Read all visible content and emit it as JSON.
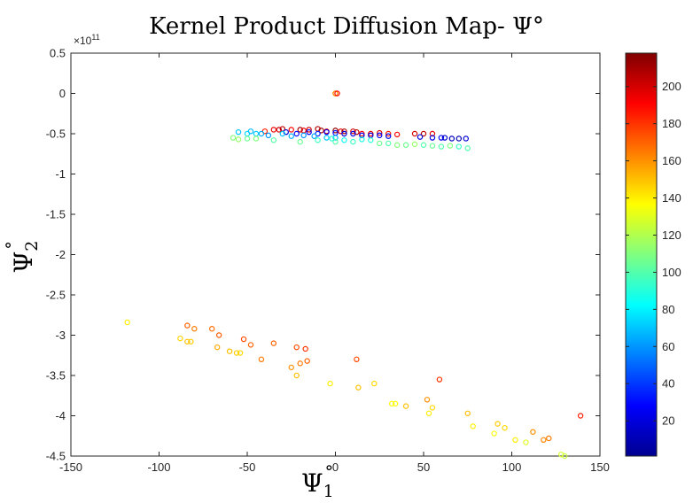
{
  "chart_data": {
    "type": "scatter",
    "title": "Kernel Product Diffusion Map- Ψ°",
    "xlabel": "Ψ",
    "xlabel_sub": "1",
    "xlabel_sup": "°",
    "ylabel": "Ψ",
    "ylabel_sub": "2",
    "ylabel_sup": "°",
    "y_exponent_prefix": "×10",
    "y_exponent_power": "11",
    "xlim": [
      -150,
      150
    ],
    "ylim": [
      -4.5,
      0.5
    ],
    "xticks": [
      -150,
      -100,
      -50,
      0,
      50,
      100,
      150
    ],
    "xtick_labels": [
      "-150",
      "-100",
      "-50",
      "0",
      "50",
      "100",
      "150"
    ],
    "yticks": [
      0.5,
      0,
      -0.5,
      -1,
      -1.5,
      -2,
      -2.5,
      -3,
      -3.5,
      -4,
      -4.5
    ],
    "ytick_labels": [
      "0.5",
      "0",
      "-0.5",
      "-1",
      "-1.5",
      "-2",
      "-2.5",
      "-3",
      "-3.5",
      "-4",
      "-4.5"
    ],
    "grid": false,
    "colorbar": {
      "range": [
        1,
        218
      ],
      "ticks": [
        20,
        40,
        60,
        80,
        100,
        120,
        140,
        160,
        180,
        200
      ],
      "tick_labels": [
        "20",
        "40",
        "60",
        "80",
        "100",
        "120",
        "140",
        "160",
        "180",
        "200"
      ],
      "colormap": "jet"
    },
    "points": [
      [
        0,
        0,
        200
      ],
      [
        0,
        0,
        150
      ],
      [
        0,
        0,
        160
      ],
      [
        1,
        0,
        190
      ],
      [
        -55,
        -0.48,
        70
      ],
      [
        -50,
        -0.5,
        75
      ],
      [
        -45,
        -0.5,
        72
      ],
      [
        -48,
        -0.47,
        68
      ],
      [
        -40,
        -0.47,
        185
      ],
      [
        -35,
        -0.45,
        195
      ],
      [
        -32,
        -0.45,
        200
      ],
      [
        -30,
        -0.44,
        205
      ],
      [
        -25,
        -0.45,
        190
      ],
      [
        -20,
        -0.45,
        210
      ],
      [
        -18,
        -0.46,
        195
      ],
      [
        -15,
        -0.45,
        200
      ],
      [
        -10,
        -0.44,
        205
      ],
      [
        -8,
        -0.46,
        210
      ],
      [
        -5,
        -0.47,
        200
      ],
      [
        0,
        -0.46,
        215
      ],
      [
        3,
        -0.47,
        195
      ],
      [
        5,
        -0.47,
        210
      ],
      [
        10,
        -0.47,
        200
      ],
      [
        12,
        -0.48,
        205
      ],
      [
        15,
        -0.5,
        190
      ],
      [
        20,
        -0.5,
        195
      ],
      [
        25,
        -0.49,
        200
      ],
      [
        30,
        -0.5,
        185
      ],
      [
        35,
        -0.51,
        190
      ],
      [
        45,
        -0.5,
        200
      ],
      [
        50,
        -0.5,
        205
      ],
      [
        55,
        -0.5,
        195
      ],
      [
        -28,
        -0.48,
        20
      ],
      [
        -22,
        -0.5,
        30
      ],
      [
        -15,
        -0.48,
        25
      ],
      [
        -10,
        -0.5,
        35
      ],
      [
        -5,
        -0.48,
        28
      ],
      [
        0,
        -0.49,
        30
      ],
      [
        5,
        -0.5,
        20
      ],
      [
        10,
        -0.5,
        25
      ],
      [
        15,
        -0.52,
        30
      ],
      [
        20,
        -0.52,
        22
      ],
      [
        25,
        -0.52,
        28
      ],
      [
        30,
        -0.53,
        25
      ],
      [
        48,
        -0.54,
        20
      ],
      [
        55,
        -0.55,
        22
      ],
      [
        60,
        -0.55,
        25
      ],
      [
        62,
        -0.55,
        18
      ],
      [
        66,
        -0.56,
        15
      ],
      [
        70,
        -0.56,
        12
      ],
      [
        74,
        -0.56,
        20
      ],
      [
        -42,
        -0.5,
        65
      ],
      [
        -38,
        -0.52,
        60
      ],
      [
        -30,
        -0.5,
        70
      ],
      [
        -25,
        -0.53,
        65
      ],
      [
        -18,
        -0.52,
        60
      ],
      [
        -12,
        -0.53,
        62
      ],
      [
        -5,
        -0.55,
        70
      ],
      [
        0,
        -0.55,
        68
      ],
      [
        -58,
        -0.55,
        110
      ],
      [
        -55,
        -0.57,
        115
      ],
      [
        -50,
        -0.56,
        105
      ],
      [
        -45,
        -0.56,
        110
      ],
      [
        -35,
        -0.58,
        100
      ],
      [
        -20,
        -0.6,
        105
      ],
      [
        -10,
        -0.58,
        95
      ],
      [
        0,
        -0.6,
        100
      ],
      [
        10,
        -0.6,
        95
      ],
      [
        20,
        -0.58,
        90
      ],
      [
        25,
        -0.62,
        105
      ],
      [
        30,
        -0.62,
        100
      ],
      [
        35,
        -0.64,
        110
      ],
      [
        40,
        -0.64,
        105
      ],
      [
        45,
        -0.63,
        115
      ],
      [
        50,
        -0.64,
        100
      ],
      [
        55,
        -0.65,
        105
      ],
      [
        60,
        -0.66,
        100
      ],
      [
        65,
        -0.65,
        110
      ],
      [
        70,
        -0.66,
        95
      ],
      [
        75,
        -0.68,
        100
      ],
      [
        5,
        -0.58,
        85
      ],
      [
        15,
        -0.57,
        88
      ],
      [
        -2,
        -0.56,
        92
      ],
      [
        -118,
        -2.84,
        140
      ],
      [
        -88,
        -3.04,
        145
      ],
      [
        -84,
        -2.88,
        170
      ],
      [
        -80,
        -2.92,
        165
      ],
      [
        -84,
        -3.08,
        150
      ],
      [
        -82,
        -3.08,
        148
      ],
      [
        -70,
        -2.92,
        168
      ],
      [
        -66,
        -3.0,
        172
      ],
      [
        -67,
        -3.15,
        155
      ],
      [
        -60,
        -3.2,
        150
      ],
      [
        -56,
        -3.22,
        148
      ],
      [
        -54,
        -3.22,
        145
      ],
      [
        -52,
        -3.05,
        175
      ],
      [
        -48,
        -3.12,
        170
      ],
      [
        -42,
        -3.3,
        165
      ],
      [
        -35,
        -3.1,
        170
      ],
      [
        -22,
        -3.15,
        175
      ],
      [
        -20,
        -3.35,
        165
      ],
      [
        -25,
        -3.4,
        160
      ],
      [
        -22,
        -3.5,
        150
      ],
      [
        -17,
        -3.17,
        180
      ],
      [
        -16,
        -3.32,
        170
      ],
      [
        -3,
        -3.6,
        140
      ],
      [
        12,
        -3.3,
        175
      ],
      [
        13,
        -3.65,
        150
      ],
      [
        22,
        -3.6,
        145
      ],
      [
        32,
        -3.85,
        135
      ],
      [
        34,
        -3.85,
        138
      ],
      [
        40,
        -3.88,
        150
      ],
      [
        52,
        -3.8,
        160
      ],
      [
        53,
        -3.97,
        140
      ],
      [
        55,
        -3.9,
        145
      ],
      [
        59,
        -3.55,
        180
      ],
      [
        75,
        -3.97,
        150
      ],
      [
        78,
        -4.13,
        140
      ],
      [
        90,
        -4.22,
        135
      ],
      [
        92,
        -4.1,
        148
      ],
      [
        96,
        -4.15,
        145
      ],
      [
        102,
        -4.3,
        140
      ],
      [
        108,
        -4.33,
        130
      ],
      [
        112,
        -4.2,
        160
      ],
      [
        118,
        -4.3,
        162
      ],
      [
        121,
        -4.28,
        165
      ],
      [
        128,
        -4.48,
        128
      ],
      [
        130,
        -4.5,
        125
      ],
      [
        139,
        -4.0,
        185
      ]
    ]
  }
}
